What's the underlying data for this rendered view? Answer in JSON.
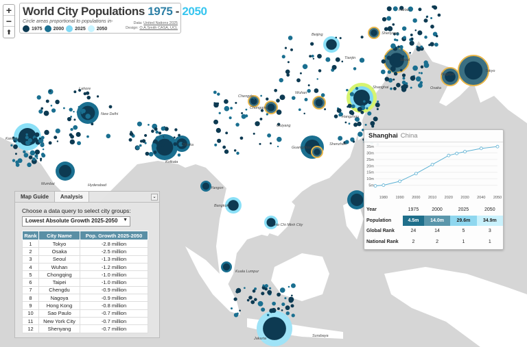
{
  "title": {
    "main": "World City Populations ",
    "year_start": "1975",
    "dash": " - ",
    "year_end": "2050"
  },
  "subtitle": "Circle areas proportional to populations in-",
  "legend": [
    {
      "label": "1975",
      "color": "#0d3a52"
    },
    {
      "label": "2000",
      "color": "#1a6f90"
    },
    {
      "label": "2025",
      "color": "#7fd8f4"
    },
    {
      "label": "2050",
      "color": "#c9f4ff"
    }
  ],
  "credits": {
    "data_prefix": "Data: ",
    "data_link": "United Nations 2025",
    "design_prefix": "Design: ",
    "design_link": "O.A.Smith CASA, UCL"
  },
  "zoom": {
    "in": "+",
    "out": "−",
    "locate": "⬆"
  },
  "panel": {
    "tabs": [
      "Map Guide",
      "Analysis"
    ],
    "close": "⌄",
    "query_label": "Choose a data query to select city groups:",
    "query_value": "Lowest Absolute Growth 2025-2050",
    "columns": [
      "Rank",
      "City Name",
      "Pop. Growth 2025-2050"
    ],
    "rows": [
      [
        "1",
        "Tokyo",
        "-2.8 million"
      ],
      [
        "2",
        "Osaka",
        "-2.5 million"
      ],
      [
        "3",
        "Seoul",
        "-1.3 million"
      ],
      [
        "4",
        "Wuhan",
        "-1.2 million"
      ],
      [
        "5",
        "Chongqing",
        "-1.0 million"
      ],
      [
        "6",
        "Taipei",
        "-1.0 million"
      ],
      [
        "7",
        "Chengdu",
        "-0.9 million"
      ],
      [
        "8",
        "Nagoya",
        "-0.9 million"
      ],
      [
        "9",
        "Hong Kong",
        "-0.8 million"
      ],
      [
        "10",
        "Sao Paulo",
        "-0.7 million"
      ],
      [
        "11",
        "New York City",
        "-0.7 million"
      ],
      [
        "12",
        "Shenyang",
        "-0.7 million"
      ]
    ]
  },
  "info": {
    "city": "Shanghai",
    "country": "China",
    "chart_data": {
      "type": "line",
      "x": [
        1975,
        1980,
        1990,
        2000,
        2010,
        2020,
        2025,
        2030,
        2040,
        2050
      ],
      "y": [
        4.5,
        5.0,
        8.0,
        14.0,
        21.0,
        28.0,
        29.6,
        31.0,
        33.5,
        34.9
      ],
      "xticks": [
        "1980",
        "1990",
        "2000",
        "2010",
        "2020",
        "2030",
        "2040",
        "2050"
      ],
      "yticks": [
        "5m",
        "10m",
        "15m",
        "20m",
        "25m",
        "30m",
        "35m"
      ],
      "ylim": [
        0,
        35
      ],
      "xlim": [
        1975,
        2050
      ]
    },
    "stats": {
      "year_label": "Year",
      "years": [
        "1975",
        "2000",
        "2025",
        "2050"
      ],
      "population_label": "Population",
      "population": [
        "4.5m",
        "14.0m",
        "29.6m",
        "34.9m"
      ],
      "global_rank_label": "Global Rank",
      "global_rank": [
        "24",
        "14",
        "5",
        "3"
      ],
      "national_rank_label": "National Rank",
      "national_rank": [
        "2",
        "2",
        "1",
        "1"
      ]
    }
  },
  "city_labels": [
    "Harbin",
    "Beijing",
    "Shenyang",
    "Seoul",
    "Tokyo",
    "Nagoya",
    "Osaka",
    "Tianjin",
    "Lahore",
    "New Delhi",
    "Karachi",
    "Shanghai",
    "Chengdu",
    "Chongqing",
    "Wuhan",
    "Hangzhou",
    "Dhaka",
    "Kolkata",
    "Mumbai",
    "Hyderabad",
    "Guangzhou",
    "Shenzhen",
    "Yangon",
    "Bangkok",
    "Ho Chi Minh City",
    "Kuala Lumpur",
    "Jakarta",
    "Surabaya",
    "Guiyang"
  ]
}
